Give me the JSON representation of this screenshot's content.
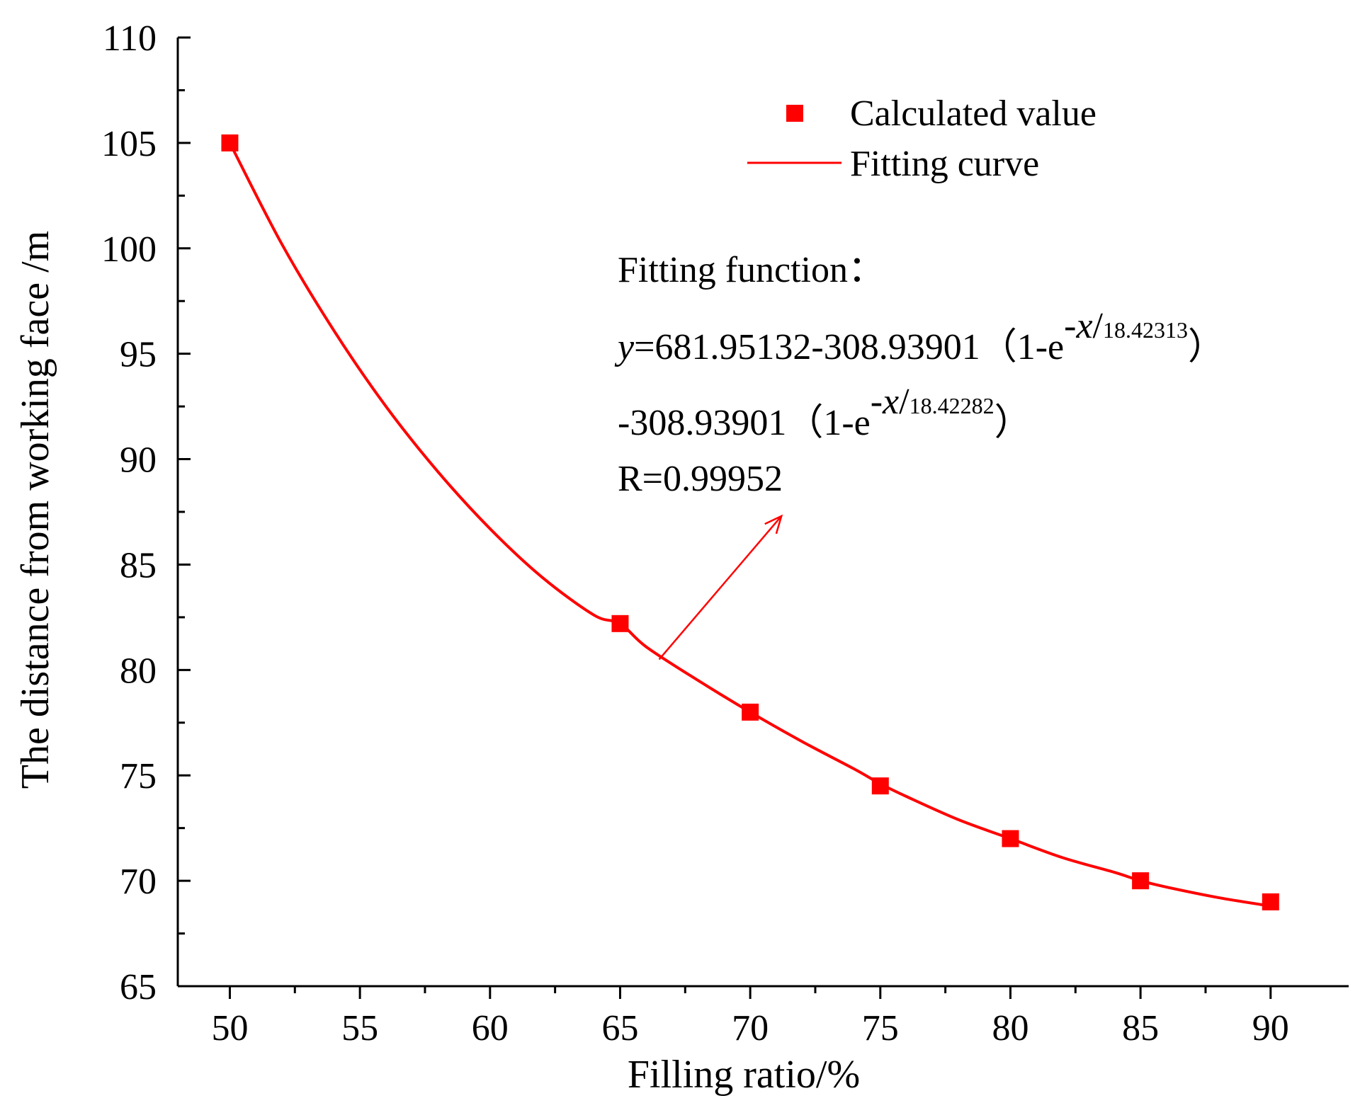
{
  "chart_data": {
    "type": "scatter",
    "xlabel": "Filling ratio/%",
    "ylabel": "The distance from working face /m",
    "xlim": [
      48,
      93
    ],
    "ylim": [
      65,
      110
    ],
    "xticks": [
      50,
      55,
      60,
      65,
      70,
      75,
      80,
      85,
      90
    ],
    "yticks": [
      65,
      70,
      75,
      80,
      85,
      90,
      95,
      100,
      105,
      110
    ],
    "grid": false,
    "legend_position": "top-right",
    "series": [
      {
        "name": "Calculated value",
        "type": "scatter",
        "marker": "square",
        "color": "#ff0000",
        "x": [
          50,
          65,
          70,
          75,
          80,
          85,
          90
        ],
        "y": [
          105,
          82.2,
          78,
          74.5,
          72,
          70,
          69
        ]
      },
      {
        "name": "Fitting curve",
        "type": "line",
        "color": "#ff0000",
        "x": [
          50,
          52,
          54,
          56,
          58,
          60,
          62,
          64,
          65,
          66,
          68,
          70,
          72,
          74,
          75,
          76,
          78,
          80,
          82,
          84,
          85,
          86,
          88,
          90
        ],
        "y": [
          105,
          100.2,
          96.1,
          92.5,
          89.4,
          86.7,
          84.4,
          82.6,
          82.2,
          81.1,
          79.5,
          78.0,
          76.6,
          75.3,
          74.6,
          74.0,
          72.9,
          72.0,
          71.1,
          70.4,
          70.0,
          69.7,
          69.2,
          68.8
        ]
      }
    ],
    "annotation": {
      "heading": "Fitting function：",
      "eq_line1_var": "y",
      "eq_line1_main": "=681.95132-308.93901（1-e",
      "eq_line1_exp_var": "-x",
      "eq_line1_exp_div": "/",
      "eq_line1_exp_den": "18.42313",
      "eq_line1_close": "）",
      "eq_line2_main": "-308.93901（1-e",
      "eq_line2_exp_var": "-x",
      "eq_line2_exp_div": "/",
      "eq_line2_exp_den": "18.42282",
      "eq_line2_close": "）",
      "r_value": "R=0.99952",
      "arrow_from": [
        66.5,
        80.5
      ],
      "arrow_to": [
        71.2,
        87.3
      ]
    }
  }
}
